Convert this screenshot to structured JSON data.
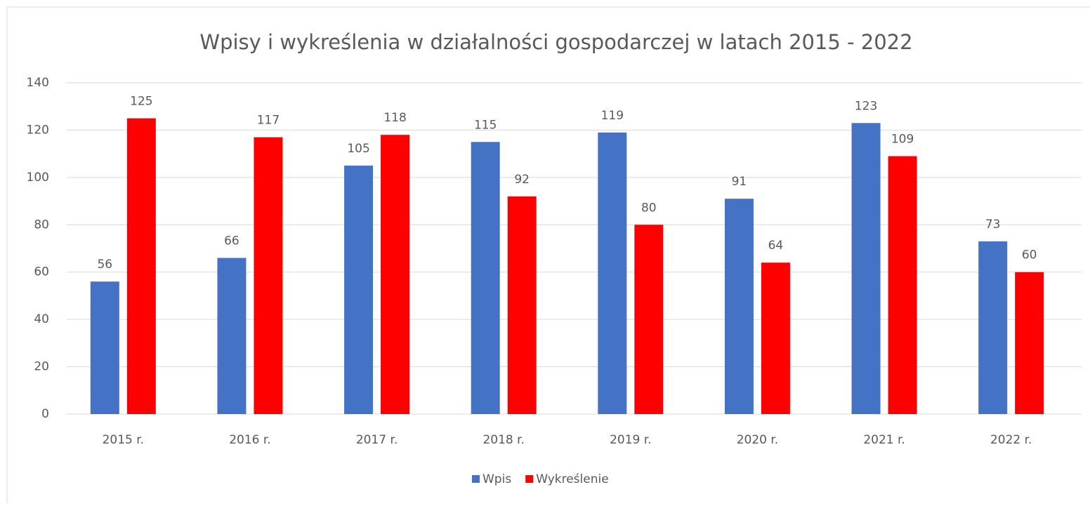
{
  "chart_data": {
    "type": "bar",
    "title": "Wpisy i wykreślenia w działalności gospodarczej w latach 2015 - 2022",
    "categories": [
      "2015 r.",
      "2016 r.",
      "2017 r.",
      "2018 r.",
      "2019 r.",
      "2020 r.",
      "2021 r.",
      "2022 r."
    ],
    "series": [
      {
        "name": "Wpis",
        "color": "#4472c4",
        "values": [
          56,
          66,
          105,
          115,
          119,
          91,
          123,
          73
        ]
      },
      {
        "name": "Wykreślenie",
        "color": "#ff0000",
        "values": [
          125,
          117,
          118,
          92,
          80,
          64,
          109,
          60
        ]
      }
    ],
    "ylim": [
      0,
      140
    ],
    "yticks": [
      0,
      20,
      40,
      60,
      80,
      100,
      120,
      140
    ],
    "grid": true,
    "legend": "bottom"
  }
}
